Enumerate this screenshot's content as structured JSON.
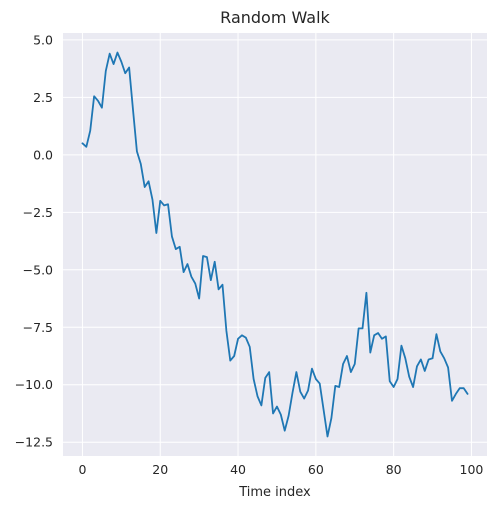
{
  "chart_data": {
    "type": "line",
    "title": "Random Walk",
    "xlabel": "Time index",
    "ylabel": "",
    "xlim": [
      -5,
      104
    ],
    "ylim": [
      -13.1,
      5.3
    ],
    "xticks": [
      0,
      20,
      40,
      60,
      80,
      100
    ],
    "xtick_labels": [
      "0",
      "20",
      "40",
      "60",
      "80",
      "100"
    ],
    "yticks": [
      5.0,
      2.5,
      0.0,
      -2.5,
      -5.0,
      -7.5,
      -10.0,
      -12.5
    ],
    "ytick_labels": [
      "5.0",
      "2.5",
      "0.0",
      "−2.5",
      "−5.0",
      "−7.5",
      "−10.0",
      "−12.5"
    ],
    "grid": true,
    "style": "seaborn-darkgrid",
    "background_color": "#eaeaf2",
    "grid_color": "#ffffff",
    "line_color": "#1f77b4",
    "series": [
      {
        "x": [
          0,
          1,
          2,
          3,
          4,
          5,
          6,
          7,
          8,
          9,
          10,
          11,
          12,
          13,
          14,
          15,
          16,
          17,
          18,
          19,
          20,
          21,
          22,
          23,
          24,
          25,
          26,
          27,
          28,
          29,
          30,
          31,
          32,
          33,
          34,
          35,
          36,
          37,
          38,
          39,
          40,
          41,
          42,
          43,
          44,
          45,
          46,
          47,
          48,
          49,
          50,
          51,
          52,
          53,
          54,
          55,
          56,
          57,
          58,
          59,
          60,
          61,
          62,
          63,
          64,
          65,
          66,
          67,
          68,
          69,
          70,
          71,
          72,
          73,
          74,
          75,
          76,
          77,
          78,
          79,
          80,
          81,
          82,
          83,
          84,
          85,
          86,
          87,
          88,
          89,
          90,
          91,
          92,
          93,
          94,
          95,
          96,
          97,
          98,
          99
        ],
        "y": [
          0.5,
          0.35,
          1.05,
          2.55,
          2.35,
          2.05,
          3.65,
          4.4,
          3.95,
          4.45,
          4.05,
          3.55,
          3.8,
          1.95,
          0.15,
          -0.4,
          -1.4,
          -1.15,
          -1.95,
          -3.4,
          -2.0,
          -2.2,
          -2.15,
          -3.55,
          -4.1,
          -4.0,
          -5.1,
          -4.75,
          -5.3,
          -5.6,
          -6.25,
          -4.4,
          -4.45,
          -5.45,
          -4.65,
          -5.85,
          -5.65,
          -7.65,
          -8.95,
          -8.75,
          -8.0,
          -7.85,
          -7.95,
          -8.35,
          -9.75,
          -10.5,
          -10.9,
          -9.7,
          -9.45,
          -11.25,
          -10.95,
          -11.3,
          -12.0,
          -11.35,
          -10.35,
          -9.45,
          -10.3,
          -10.6,
          -10.25,
          -9.3,
          -9.75,
          -9.95,
          -11.1,
          -12.25,
          -11.45,
          -10.05,
          -10.1,
          -9.1,
          -8.75,
          -9.45,
          -9.1,
          -7.55,
          -7.55,
          -6.0,
          -8.6,
          -7.85,
          -7.75,
          -8.0,
          -7.9,
          -9.85,
          -10.1,
          -9.75,
          -8.3,
          -8.85,
          -9.65,
          -10.1,
          -9.2,
          -8.9,
          -9.4,
          -8.9,
          -8.85,
          -7.8,
          -8.55,
          -8.85,
          -9.25,
          -10.7,
          -10.4,
          -10.15,
          -10.15,
          -10.4
        ]
      }
    ]
  }
}
